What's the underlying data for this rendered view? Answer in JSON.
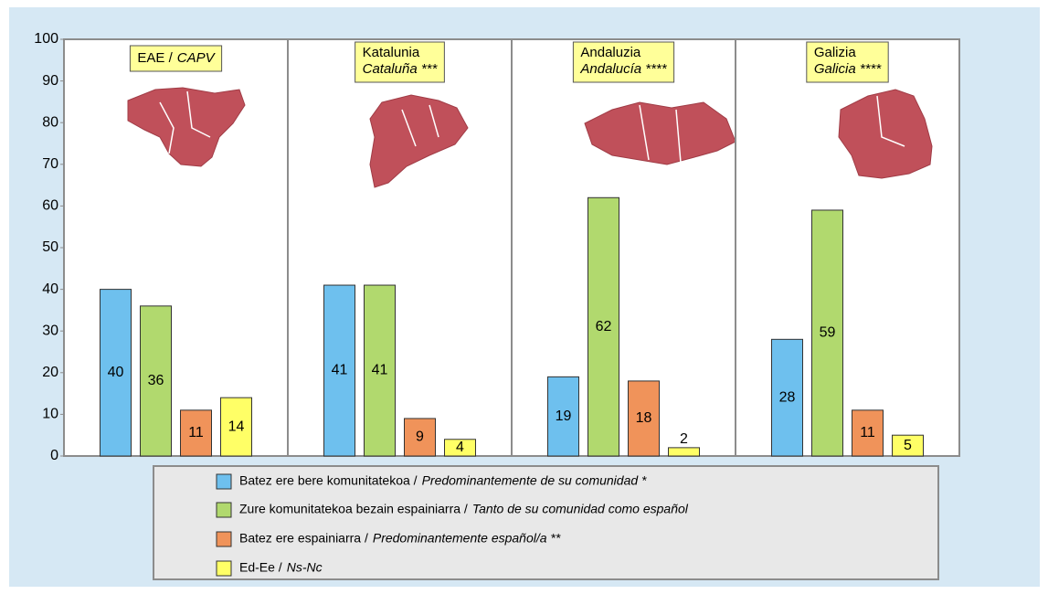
{
  "chart_data": {
    "type": "bar",
    "categories": [
      "EAE /",
      "Katalunia",
      "Andaluzia",
      "Galizia"
    ],
    "category_subtitles": [
      "CAPV",
      "Cataluña ***",
      "Andalucía ****",
      "Galicia ****"
    ],
    "series": [
      {
        "name": "Batez ere bere komunitatekoa /",
        "name_es": "Predominantemente de su comunidad *",
        "color": "#6ec0ee",
        "values": [
          40,
          41,
          19,
          28
        ]
      },
      {
        "name": "Zure komunitatekoa bezain espainiarra /",
        "name_es": "Tanto de su comunidad como español",
        "color": "#b1d96e",
        "values": [
          36,
          41,
          62,
          59
        ]
      },
      {
        "name": "Batez ere espainiarra /",
        "name_es": "Predominantemente español/a **",
        "color": "#f0935a",
        "values": [
          11,
          9,
          18,
          11
        ]
      },
      {
        "name": "Ed-Ee /",
        "name_es": "Ns-Nc",
        "color": "#ffff66",
        "values": [
          14,
          4,
          2,
          5
        ]
      }
    ],
    "ylim": [
      0,
      100
    ],
    "yticks": [
      0,
      10,
      20,
      30,
      40,
      50,
      60,
      70,
      80,
      90,
      100
    ],
    "grid": false
  }
}
